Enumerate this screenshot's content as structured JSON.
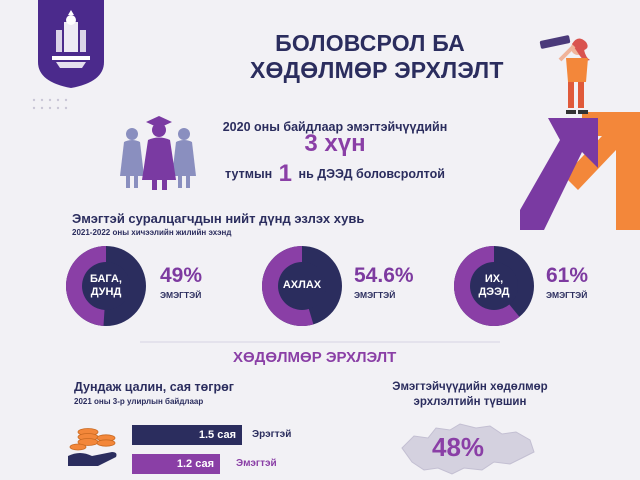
{
  "header": {
    "title_line1": "БОЛОВСРОЛ БА",
    "title_line2": "ХӨДӨЛМӨР ЭРХЛЭЛТ"
  },
  "intro": {
    "line1": "2020 оны байдлаар эмэгтэйчүүдийн",
    "line2": "3 хүн",
    "line3_pre": "тутмын",
    "line3_num": "1",
    "line3_post": "нь ДЭЭД боловсролтой"
  },
  "education": {
    "title": "Эмэгтэй суралцагчдын нийт дүнд эзлэх хувь",
    "subtitle": "2021-2022 оны хичээлийн жилийн эхэнд",
    "items": [
      {
        "ring_line1": "БАГА,",
        "ring_line2": "ДУНД",
        "percent": "49%",
        "label": "ЭМЭГТЭЙ",
        "value": 0.49
      },
      {
        "ring_line1": "АХЛАХ",
        "ring_line2": "",
        "percent": "54.6%",
        "label": "ЭМЭГТЭЙ",
        "value": 0.546
      },
      {
        "ring_line1": "ИХ,",
        "ring_line2": "ДЭЭД",
        "percent": "61%",
        "label": "ЭМЭГТЭЙ",
        "value": 0.61
      }
    ]
  },
  "employment": {
    "section_title": "ХӨДӨЛМӨР ЭРХЛЭЛТ",
    "wage_title": "Дундаж цалин, сая төгрөг",
    "wage_subtitle": "2021 оны 3-р улирлын байдлаар",
    "bars": [
      {
        "value_label": "1.5 сая",
        "group": "Эрэгтэй",
        "value": 1.5
      },
      {
        "value_label": "1.2 сая",
        "group": "Эмэгтэй",
        "value": 1.2
      }
    ],
    "rate_title": "Эмэгтэйчүүдийн хөдөлмөр эрхлэлтийн түвшин",
    "rate_percent": "48%"
  },
  "colors": {
    "navy": "#2b2d5e",
    "purple": "#8a3fa6",
    "orange": "#f3873a",
    "background": "#f2f1f5"
  }
}
